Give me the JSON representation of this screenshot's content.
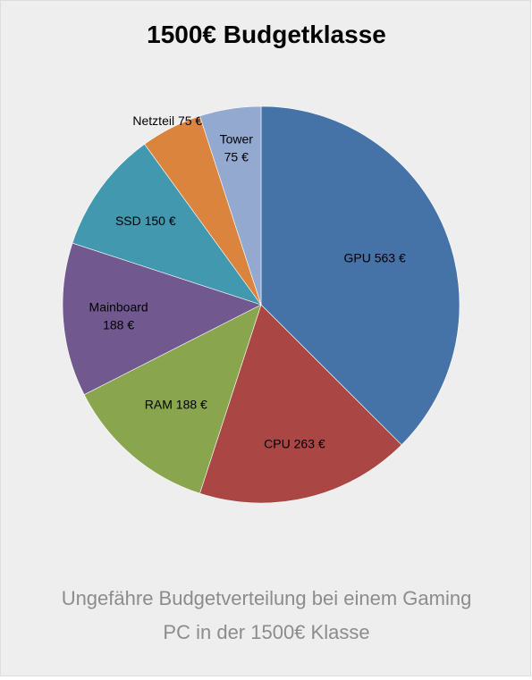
{
  "chart_data": {
    "type": "pie",
    "title": "1500€ Budgetklasse",
    "currency": "€",
    "slices": [
      {
        "label": "GPU",
        "value": 563,
        "color": "#4572a7",
        "text_lines": [
          "GPU 563 €"
        ]
      },
      {
        "label": "CPU",
        "value": 263,
        "color": "#aa4643",
        "text_lines": [
          "CPU 263 €"
        ]
      },
      {
        "label": "RAM",
        "value": 188,
        "color": "#89a54e",
        "text_lines": [
          "RAM 188 €"
        ]
      },
      {
        "label": "Mainboard",
        "value": 188,
        "color": "#71588f",
        "text_lines": [
          "Mainboard",
          "188 €"
        ]
      },
      {
        "label": "SSD",
        "value": 150,
        "color": "#4198af",
        "text_lines": [
          "SSD 150 €"
        ]
      },
      {
        "label": "Netzteil",
        "value": 75,
        "color": "#db843d",
        "text_lines": [
          "Netzteil 75 €"
        ]
      },
      {
        "label": "Tower",
        "value": 75,
        "color": "#93a9cf",
        "text_lines": [
          "Tower",
          "75 €"
        ]
      }
    ],
    "start": "12 o'clock",
    "direction": "clockwise",
    "legend": "none"
  },
  "caption": {
    "line1": "Ungefähre Budgetverteilung bei einem Gaming",
    "line2": "PC in der 1500€ Klasse"
  }
}
